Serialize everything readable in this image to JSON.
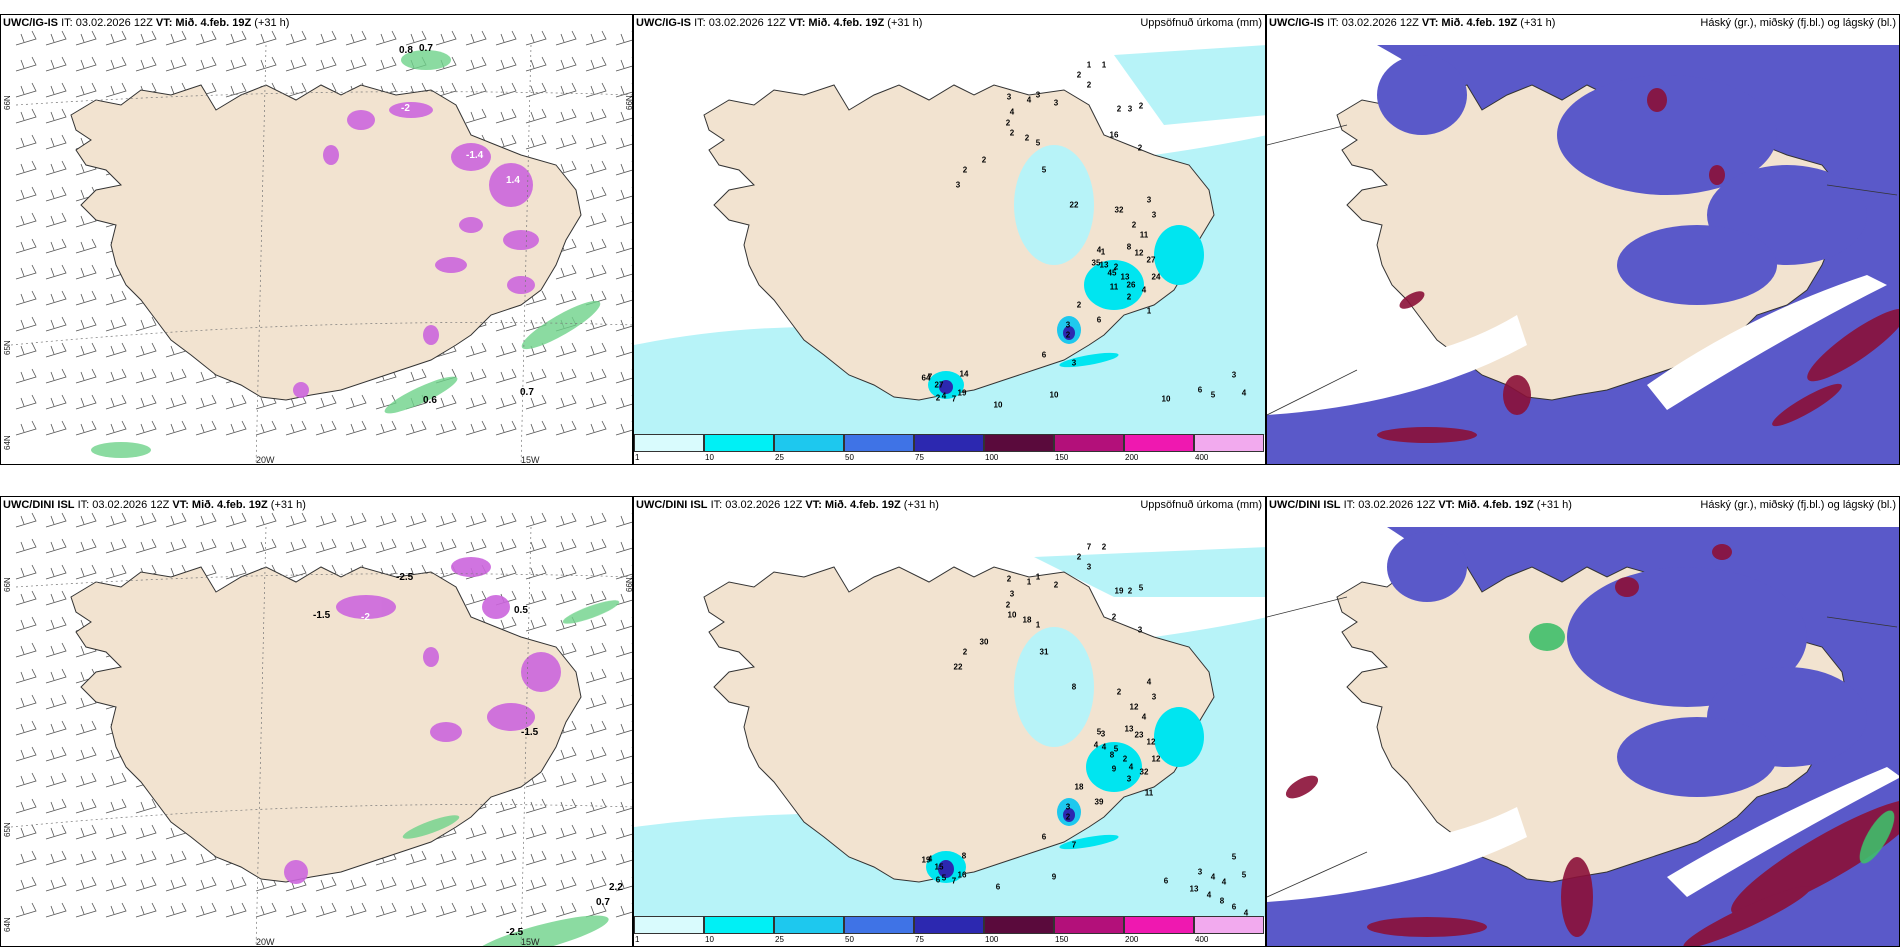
{
  "colors": {
    "land": "#f2e3d0",
    "sea_light": "#b7f3f8",
    "cyan": "#00e5f0",
    "blue_cloud": "#5a59c9",
    "dark_red": "#8b1038",
    "magenta": "#cc66dd",
    "green": "#6fd38a"
  },
  "panels": [
    {
      "id": "top-left",
      "title_prefix": "UWC/IG-IS",
      "title_mid": "IT: 03.02.2026 12Z",
      "title_vt": "VT: Mið. 4.feb. 19Z",
      "title_suffix": "(+31 h)",
      "right_label": "",
      "lon_labels": [
        "20W",
        "15W"
      ],
      "lat_labels": [
        "66N",
        "64N",
        "65N",
        "66N"
      ],
      "values": [
        "0.8",
        "0.7",
        "-2",
        "-1.4",
        "1.4",
        "0.6",
        "0.7"
      ]
    },
    {
      "id": "top-middle",
      "title_prefix": "UWC/IG-IS",
      "title_mid": "IT: 03.02.2026 12Z",
      "title_vt": "VT: Mið. 4.feb. 19Z",
      "title_suffix": "(+31 h)",
      "right_label": "Uppsöfnuð úrkoma (mm)",
      "values": [
        "1",
        "1",
        "2",
        "2",
        "3",
        "4",
        "3",
        "3",
        "4",
        "2",
        "2",
        "2",
        "3",
        "2",
        "2",
        "5",
        "16",
        "2",
        "2",
        "3",
        "2",
        "5",
        "22",
        "32",
        "3",
        "3",
        "2",
        "11",
        "8",
        "12",
        "27",
        "2",
        "13",
        "26",
        "4",
        "2",
        "6",
        "24",
        "1",
        "4",
        "1",
        "35",
        "13",
        "45",
        "11",
        "2",
        "3",
        "6",
        "3",
        "2",
        "27",
        "14",
        "64",
        "4",
        "19",
        "7",
        "2",
        "10",
        "10",
        "7",
        "3",
        "4",
        "10",
        "6",
        "5"
      ]
    },
    {
      "id": "top-right",
      "title_prefix": "UWC/IG-IS",
      "title_mid": "IT: 03.02.2026 12Z",
      "title_vt": "VT: Mið. 4.feb. 19Z",
      "title_suffix": "(+31 h)",
      "right_label": "Háský (gr.), miðský (fj.bl.) og lágský (bl.)"
    },
    {
      "id": "bottom-left",
      "title_prefix": "UWC/DINI ISL",
      "title_mid": "IT: 03.02.2026 12Z",
      "title_vt": "VT: Mið. 4.feb. 19Z",
      "title_suffix": "(+31 h)",
      "right_label": "",
      "lon_labels": [
        "20W",
        "15W"
      ],
      "lat_labels": [
        "66N",
        "64N",
        "65N",
        "66N"
      ],
      "values": [
        "-2.5",
        "-1.5",
        "-2",
        "0.5",
        "-1.5",
        "2.2",
        "0.7",
        "-2.5"
      ]
    },
    {
      "id": "bottom-middle",
      "title_prefix": "UWC/DINI ISL",
      "title_mid": "IT: 03.02.2026 12Z",
      "title_vt": "VT: Mið. 4.feb. 19Z",
      "title_suffix": "(+31 h)",
      "right_label": "Uppsöfnuð úrkoma (mm)",
      "values": [
        "7",
        "2",
        "2",
        "3",
        "2",
        "1",
        "1",
        "2",
        "3",
        "2",
        "10",
        "19",
        "2",
        "5",
        "18",
        "1",
        "2",
        "3",
        "2",
        "22",
        "30",
        "31",
        "8",
        "2",
        "4",
        "3",
        "12",
        "4",
        "13",
        "23",
        "12",
        "5",
        "2",
        "4",
        "32",
        "18",
        "39",
        "12",
        "11",
        "5",
        "3",
        "4",
        "4",
        "8",
        "9",
        "3",
        "7",
        "6",
        "3",
        "2",
        "15",
        "8",
        "19",
        "5",
        "16",
        "4",
        "6",
        "6",
        "9",
        "7",
        "5",
        "5",
        "6",
        "3",
        "4",
        "4",
        "13",
        "4",
        "8",
        "6",
        "4"
      ]
    },
    {
      "id": "bottom-right",
      "title_prefix": "UWC/DINI ISL",
      "title_mid": "IT: 03.02.2026 12Z",
      "title_vt": "VT: Mið. 4.feb. 19Z",
      "title_suffix": "(+31 h)",
      "right_label": "Háský (gr.), miðský (fj.bl.) og lágský (bl.)"
    }
  ],
  "legend": {
    "ticks": [
      "1",
      "10",
      "25",
      "50",
      "75",
      "100",
      "150",
      "200",
      "400"
    ],
    "colors": [
      "#d9fbfd",
      "#00f0f5",
      "#1ec8ee",
      "#3f73e6",
      "#2c28b0",
      "#5a0a3c",
      "#b3107a",
      "#ef18b0",
      "#f2aaee"
    ]
  }
}
